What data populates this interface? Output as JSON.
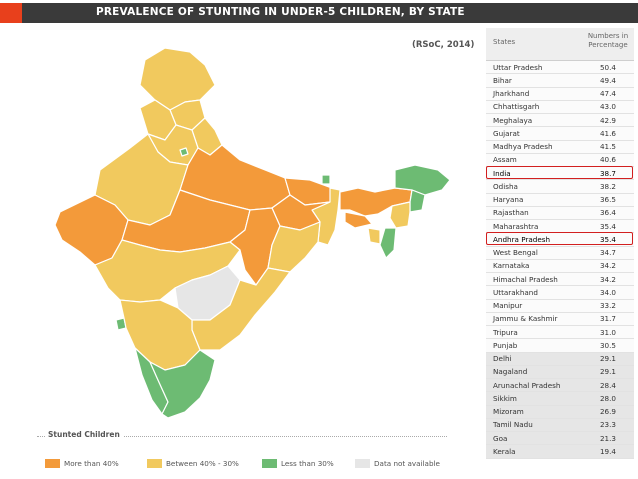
{
  "header": {
    "title": "PREVALENCE OF STUNTING IN UNDER-5 CHILDREN,  BY STATE"
  },
  "source": "(RSoC, 2014)",
  "table": {
    "col_state": "States",
    "col_value_line1": "Numbers in",
    "col_value_line2": "Percentage",
    "rows": [
      {
        "state": "Uttar Pradesh",
        "value": "50.4"
      },
      {
        "state": "Bihar",
        "value": "49.4"
      },
      {
        "state": "Jharkhand",
        "value": "47.4"
      },
      {
        "state": "Chhattisgarh",
        "value": "43.0"
      },
      {
        "state": "Meghalaya",
        "value": "42.9"
      },
      {
        "state": "Gujarat",
        "value": "41.6"
      },
      {
        "state": "Madhya Pradesh",
        "value": "41.5"
      },
      {
        "state": "Assam",
        "value": "40.6"
      },
      {
        "state": "India",
        "value": "38.7"
      },
      {
        "state": "Odisha",
        "value": "38.2"
      },
      {
        "state": "Haryana",
        "value": "36.5"
      },
      {
        "state": "Rajasthan",
        "value": "36.4"
      },
      {
        "state": "Maharashtra",
        "value": "35.4"
      },
      {
        "state": "Andhra Pradesh",
        "value": "35.4"
      },
      {
        "state": "West Bengal",
        "value": "34.7"
      },
      {
        "state": "Karnataka",
        "value": "34.2"
      },
      {
        "state": "Himachal Pradesh",
        "value": "34.2"
      },
      {
        "state": "Uttarakhand",
        "value": "34.0"
      },
      {
        "state": "Manipur",
        "value": "33.2"
      },
      {
        "state": "Jammu & Kashmir",
        "value": "31.7"
      },
      {
        "state": "Tripura",
        "value": "31.0"
      },
      {
        "state": "Punjab",
        "value": "30.5"
      },
      {
        "state": "Delhi",
        "value": "29.1"
      },
      {
        "state": "Nagaland",
        "value": "29.1"
      },
      {
        "state": "Arunachal Pradesh",
        "value": "28.4"
      },
      {
        "state": "Sikkim",
        "value": "28.0"
      },
      {
        "state": "Mizoram",
        "value": "26.9"
      },
      {
        "state": "Tamil Nadu",
        "value": "23.3"
      },
      {
        "state": "Goa",
        "value": "21.3"
      },
      {
        "state": "Kerala",
        "value": "19.4"
      }
    ],
    "highlighted": [
      "India",
      "Andhra Pradesh"
    ],
    "highlight_color": "#d21f1f"
  },
  "legend": {
    "title": "Stunted Children",
    "items": [
      {
        "label": "More than 40%",
        "color": "#f39a3a"
      },
      {
        "label": "Between 40% - 30%",
        "color": "#f1c95e"
      },
      {
        "label": "Less than 30%",
        "color": "#6dbb73"
      },
      {
        "label": "Data not available",
        "color": "#e6e6e6"
      }
    ]
  },
  "colors": {
    "high": "#f39a3a",
    "mid": "#f1c95e",
    "low": "#6dbb73",
    "na": "#e6e6e6"
  }
}
